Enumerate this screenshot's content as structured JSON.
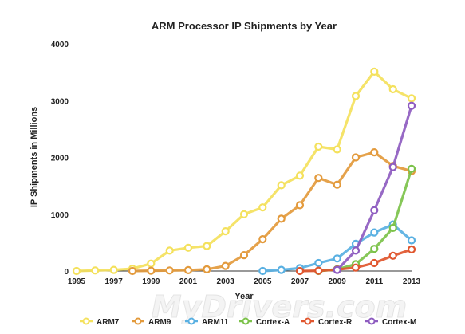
{
  "chart_data": {
    "type": "line",
    "title": "ARM Processor IP Shipments by Year",
    "xlabel": "Year",
    "ylabel": "IP Shipments in Millions",
    "x": [
      1995,
      1996,
      1997,
      1998,
      1999,
      2000,
      2001,
      2002,
      2003,
      2004,
      2005,
      2006,
      2007,
      2008,
      2009,
      2010,
      2011,
      2012,
      2013
    ],
    "x_tick_labels": [
      "1995",
      "1997",
      "1999",
      "2001",
      "2003",
      "2005",
      "2007",
      "2009",
      "2011",
      "2013"
    ],
    "x_tick_values": [
      1995,
      1997,
      1999,
      2001,
      2003,
      2005,
      2007,
      2009,
      2011,
      2013
    ],
    "xlim": [
      1995,
      2013
    ],
    "y_tick_labels": [
      "0",
      "1000",
      "2000",
      "3000",
      "4000"
    ],
    "y_tick_values": [
      0,
      1000,
      2000,
      3000,
      4000
    ],
    "ylim": [
      0,
      4000
    ],
    "grid": false,
    "legend_position": "bottom",
    "series": [
      {
        "name": "ARM7",
        "color": "#f4e15c",
        "x": [
          1995,
          1996,
          1997,
          1998,
          1999,
          2000,
          2001,
          2002,
          2003,
          2004,
          2005,
          2006,
          2007,
          2008,
          2009,
          2010,
          2011,
          2012,
          2013
        ],
        "values": [
          0,
          10,
          20,
          40,
          130,
          360,
          410,
          440,
          700,
          1000,
          1120,
          1510,
          1680,
          2190,
          2140,
          3080,
          3510,
          3200,
          3040
        ]
      },
      {
        "name": "ARM9",
        "color": "#e39a3c",
        "x": [
          1998,
          1999,
          2000,
          2001,
          2002,
          2003,
          2004,
          2005,
          2006,
          2007,
          2008,
          2009,
          2010,
          2011,
          2012,
          2013
        ],
        "values": [
          0,
          5,
          10,
          15,
          30,
          90,
          280,
          560,
          920,
          1160,
          1640,
          1520,
          2000,
          2090,
          1850,
          1760
        ]
      },
      {
        "name": "ARM11",
        "color": "#59b0e2",
        "x": [
          2005,
          2006,
          2007,
          2008,
          2009,
          2010,
          2011,
          2012,
          2013
        ],
        "values": [
          0,
          20,
          50,
          140,
          220,
          480,
          680,
          820,
          540
        ]
      },
      {
        "name": "Cortex-A",
        "color": "#7cc24a",
        "x": [
          2008,
          2009,
          2010,
          2011,
          2012,
          2013
        ],
        "values": [
          0,
          30,
          120,
          390,
          760,
          1800
        ]
      },
      {
        "name": "Cortex-R",
        "color": "#e0562e",
        "x": [
          2007,
          2008,
          2009,
          2010,
          2011,
          2012,
          2013
        ],
        "values": [
          0,
          5,
          25,
          60,
          140,
          270,
          380
        ]
      },
      {
        "name": "Cortex-M",
        "color": "#8e5cc0",
        "x": [
          2009,
          2010,
          2011,
          2012,
          2013
        ],
        "values": [
          20,
          360,
          1070,
          1830,
          2910
        ]
      }
    ]
  },
  "watermark": "MyDrivers.com"
}
